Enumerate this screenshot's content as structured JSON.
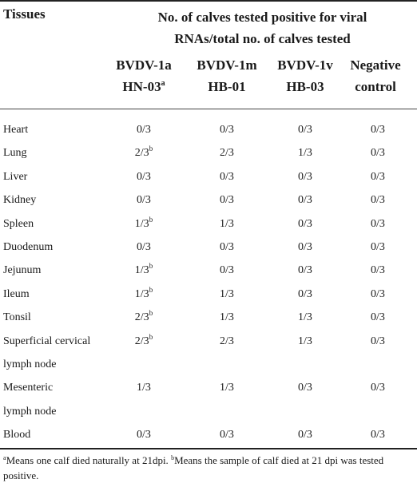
{
  "header": {
    "tissues": "Tissues",
    "span_line1": "No. of calves tested positive for viral",
    "span_line2": "RNAs/total no. of calves tested",
    "columns": [
      {
        "line1": "BVDV-1a",
        "line2": "HN-03",
        "sup": "a"
      },
      {
        "line1": "BVDV-1m",
        "line2": "HB-01",
        "sup": ""
      },
      {
        "line1": "BVDV-1v",
        "line2": "HB-03",
        "sup": ""
      },
      {
        "line1": "Negative",
        "line2": "control",
        "sup": ""
      }
    ]
  },
  "rows": [
    {
      "tissue": [
        "Heart"
      ],
      "values": [
        "0/3",
        "0/3",
        "0/3",
        "0/3"
      ],
      "sup1": ""
    },
    {
      "tissue": [
        "Lung"
      ],
      "values": [
        "2/3",
        "2/3",
        "1/3",
        "0/3"
      ],
      "sup1": "b"
    },
    {
      "tissue": [
        "Liver"
      ],
      "values": [
        "0/3",
        "0/3",
        "0/3",
        "0/3"
      ],
      "sup1": ""
    },
    {
      "tissue": [
        "Kidney"
      ],
      "values": [
        "0/3",
        "0/3",
        "0/3",
        "0/3"
      ],
      "sup1": ""
    },
    {
      "tissue": [
        "Spleen"
      ],
      "values": [
        "1/3",
        "1/3",
        "0/3",
        "0/3"
      ],
      "sup1": "b"
    },
    {
      "tissue": [
        "Duodenum"
      ],
      "values": [
        "0/3",
        "0/3",
        "0/3",
        "0/3"
      ],
      "sup1": ""
    },
    {
      "tissue": [
        "Jejunum"
      ],
      "values": [
        "1/3",
        "0/3",
        "0/3",
        "0/3"
      ],
      "sup1": "b"
    },
    {
      "tissue": [
        "Ileum"
      ],
      "values": [
        "1/3",
        "1/3",
        "0/3",
        "0/3"
      ],
      "sup1": "b"
    },
    {
      "tissue": [
        "Tonsil"
      ],
      "values": [
        "2/3",
        "1/3",
        "1/3",
        "0/3"
      ],
      "sup1": "b"
    },
    {
      "tissue": [
        "Superficial cervical",
        "lymph node"
      ],
      "values": [
        "2/3",
        "2/3",
        "1/3",
        "0/3"
      ],
      "sup1": "b"
    },
    {
      "tissue": [
        "Mesenteric",
        "lymph node"
      ],
      "values": [
        "1/3",
        "1/3",
        "0/3",
        "0/3"
      ],
      "sup1": ""
    },
    {
      "tissue": [
        "Blood"
      ],
      "values": [
        "0/3",
        "0/3",
        "0/3",
        "0/3"
      ],
      "sup1": ""
    }
  ],
  "footnotes": {
    "a_mark": "a",
    "a_text": "Means one calf died naturally at 21dpi. ",
    "b_mark": "b",
    "b_text": "Means the sample of calf died at 21 dpi was tested positive."
  }
}
